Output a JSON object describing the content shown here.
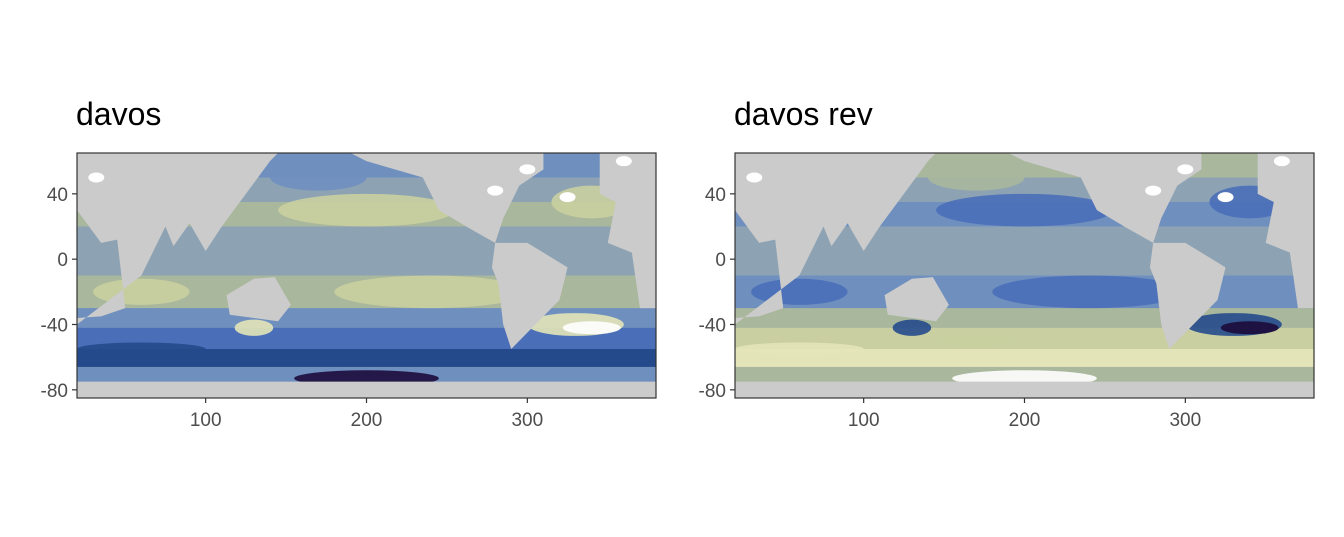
{
  "colors": {
    "ocean_ramp_davos": [
      "#1b0b3a",
      "#254a8c",
      "#4a6fb8",
      "#6f8fbf",
      "#8da3b4",
      "#a9b79c",
      "#c9cfa0",
      "#e3e4b8",
      "#ffffff"
    ],
    "land": "#cbcbcb",
    "panel_border": "#333333",
    "tick_text": "#4d4d4d"
  },
  "chart_data": [
    {
      "type": "heatmap",
      "title": "davos",
      "xlabel": "",
      "ylabel": "",
      "xlim": [
        20,
        380
      ],
      "ylim": [
        -85,
        65
      ],
      "x_ticks": [
        "100",
        "200",
        "300"
      ],
      "y_ticks": [
        "40",
        "0",
        "-40",
        "-80"
      ],
      "x_tick_values": [
        100,
        200,
        300
      ],
      "y_tick_values": [
        40,
        0,
        -40,
        -80
      ],
      "palette": "davos",
      "legend": "none",
      "grid": false
    },
    {
      "type": "heatmap",
      "title": "davos rev",
      "xlabel": "",
      "ylabel": "",
      "xlim": [
        20,
        380
      ],
      "ylim": [
        -85,
        65
      ],
      "x_ticks": [
        "100",
        "200",
        "300"
      ],
      "y_ticks": [
        "40",
        "0",
        "-40",
        "-80"
      ],
      "x_tick_values": [
        100,
        200,
        300
      ],
      "y_tick_values": [
        40,
        0,
        -40,
        -80
      ],
      "palette": "davos reversed",
      "legend": "none",
      "grid": false
    }
  ]
}
